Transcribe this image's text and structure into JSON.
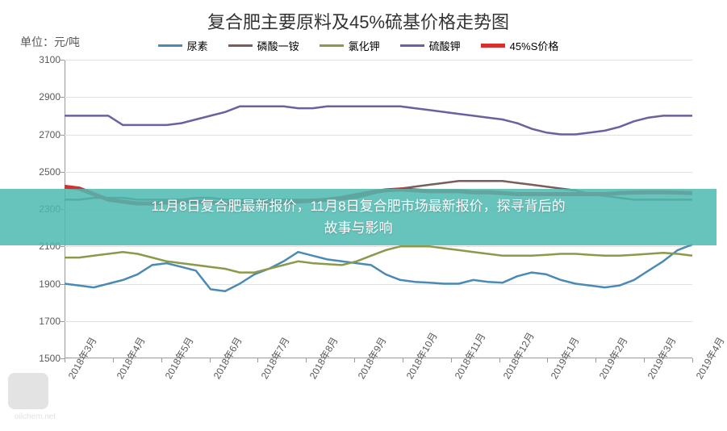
{
  "title": "复合肥主要原料及45%硫基价格走势图",
  "unit_label": "单位：元/吨",
  "ylim": [
    1500,
    3100
  ],
  "ytick_step": 200,
  "yticks": [
    1500,
    1700,
    1900,
    2100,
    2300,
    2500,
    2700,
    2900,
    3100
  ],
  "x_labels": [
    "2018年3月",
    "2018年4月",
    "2018年5月",
    "2018年6月",
    "2018年7月",
    "2018年8月",
    "2018年9月",
    "2018年10月",
    "2018年11月",
    "2018年12月",
    "2019年1月",
    "2019年2月",
    "2019年3月",
    "2019年4月"
  ],
  "background_color": "#ffffff",
  "grid_color": "#e0e0e0",
  "axis_color": "#999999",
  "series": [
    {
      "name": "尿素",
      "label": "尿素",
      "color": "#4a8ab5",
      "width": 2.5,
      "data": [
        1900,
        1890,
        1880,
        1900,
        1920,
        1950,
        2000,
        2010,
        1990,
        1970,
        1870,
        1860,
        1900,
        1950,
        1980,
        2020,
        2070,
        2050,
        2030,
        2020,
        2010,
        2000,
        1950,
        1920,
        1910,
        1905,
        1900,
        1900,
        1920,
        1910,
        1905,
        1940,
        1960,
        1950,
        1920,
        1900,
        1890,
        1880,
        1890,
        1920,
        1970,
        2020,
        2080,
        2110
      ]
    },
    {
      "name": "磷酸一铵",
      "label": "磷酸一铵",
      "color": "#7a5c5c",
      "width": 2.5,
      "data": [
        2350,
        2350,
        2360,
        2360,
        2360,
        2350,
        2350,
        2350,
        2350,
        2360,
        2360,
        2350,
        2350,
        2350,
        2350,
        2350,
        2350,
        2350,
        2350,
        2350,
        2360,
        2380,
        2400,
        2410,
        2420,
        2430,
        2440,
        2450,
        2450,
        2450,
        2450,
        2440,
        2430,
        2420,
        2410,
        2400,
        2380,
        2370,
        2360,
        2350,
        2350,
        2350,
        2350,
        2350
      ]
    },
    {
      "name": "氯化钾",
      "label": "氯化钾",
      "color": "#8a9a4a",
      "width": 2.5,
      "data": [
        2040,
        2040,
        2050,
        2060,
        2070,
        2060,
        2040,
        2020,
        2010,
        2000,
        1990,
        1980,
        1960,
        1960,
        1980,
        2000,
        2020,
        2010,
        2005,
        2000,
        2020,
        2050,
        2080,
        2100,
        2100,
        2100,
        2090,
        2080,
        2070,
        2060,
        2050,
        2050,
        2050,
        2055,
        2060,
        2060,
        2055,
        2050,
        2050,
        2055,
        2060,
        2065,
        2060,
        2050
      ]
    },
    {
      "name": "硫酸钾",
      "label": "硫酸钾",
      "color": "#6a619e",
      "width": 2.5,
      "data": [
        2800,
        2800,
        2800,
        2800,
        2750,
        2750,
        2750,
        2750,
        2760,
        2780,
        2800,
        2820,
        2850,
        2850,
        2850,
        2850,
        2840,
        2840,
        2850,
        2850,
        2850,
        2850,
        2850,
        2850,
        2840,
        2830,
        2820,
        2810,
        2800,
        2790,
        2780,
        2760,
        2730,
        2710,
        2700,
        2700,
        2710,
        2720,
        2740,
        2770,
        2790,
        2800,
        2800,
        2800
      ]
    },
    {
      "name": "45%S价格",
      "label": "45%S价格",
      "color": "#d92e2e",
      "width": 5,
      "data": [
        2420,
        2410,
        2380,
        2350,
        2340,
        2330,
        2330,
        2335,
        2340,
        2340,
        2335,
        2330,
        2330,
        2330,
        2330,
        2330,
        2340,
        2345,
        2350,
        2360,
        2375,
        2390,
        2400,
        2405,
        2400,
        2395,
        2395,
        2395,
        2390,
        2390,
        2385,
        2380,
        2380,
        2380,
        2380,
        2380,
        2380,
        2380,
        2385,
        2388,
        2390,
        2390,
        2388,
        2385
      ]
    }
  ],
  "overlay": {
    "line1": "11月8日复合肥最新报价，11月8日复合肥市场最新报价，探寻背后的",
    "line2": "故事与影响",
    "band_color": "rgba(76,186,178,0.85)",
    "text_color": "#ffffff",
    "top_pct": 44
  },
  "watermark": {
    "text": "oilchem.net"
  }
}
